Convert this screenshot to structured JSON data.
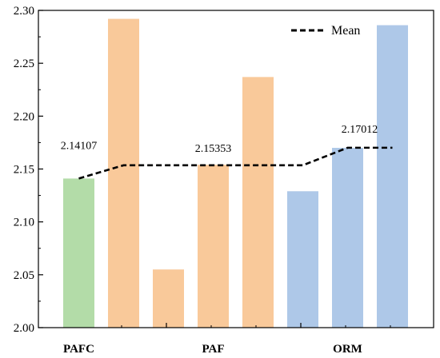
{
  "chart_data": {
    "type": "bar",
    "ylim": [
      2.0,
      2.3
    ],
    "y_ticks": [
      "2.00",
      "2.05",
      "2.10",
      "2.15",
      "2.20",
      "2.25",
      "2.30"
    ],
    "bars": [
      {
        "group": "PAFC",
        "value": 2.141,
        "color": "#b3dca8"
      },
      {
        "group": "PAFC",
        "value": 2.292,
        "color": "#f9c99a"
      },
      {
        "group": "PAF",
        "value": 2.055,
        "color": "#f9c99a"
      },
      {
        "group": "PAF",
        "value": 2.154,
        "color": "#f9c99a"
      },
      {
        "group": "PAF",
        "value": 2.237,
        "color": "#f9c99a"
      },
      {
        "group": "ORM",
        "value": 2.129,
        "color": "#aec8e8"
      },
      {
        "group": "ORM",
        "value": 2.17,
        "color": "#aec8e8"
      },
      {
        "group": "ORM",
        "value": 2.286,
        "color": "#aec8e8"
      }
    ],
    "categories": [
      "PAFC",
      "PAF",
      "ORM"
    ],
    "mean_series": {
      "name": "Mean",
      "values": [
        2.14107,
        2.15353,
        2.17012
      ],
      "labels": [
        "2.14107",
        "2.15353",
        "2.17012"
      ]
    },
    "legend": {
      "position": "top-right",
      "entries": [
        "Mean"
      ]
    },
    "grid": false
  }
}
